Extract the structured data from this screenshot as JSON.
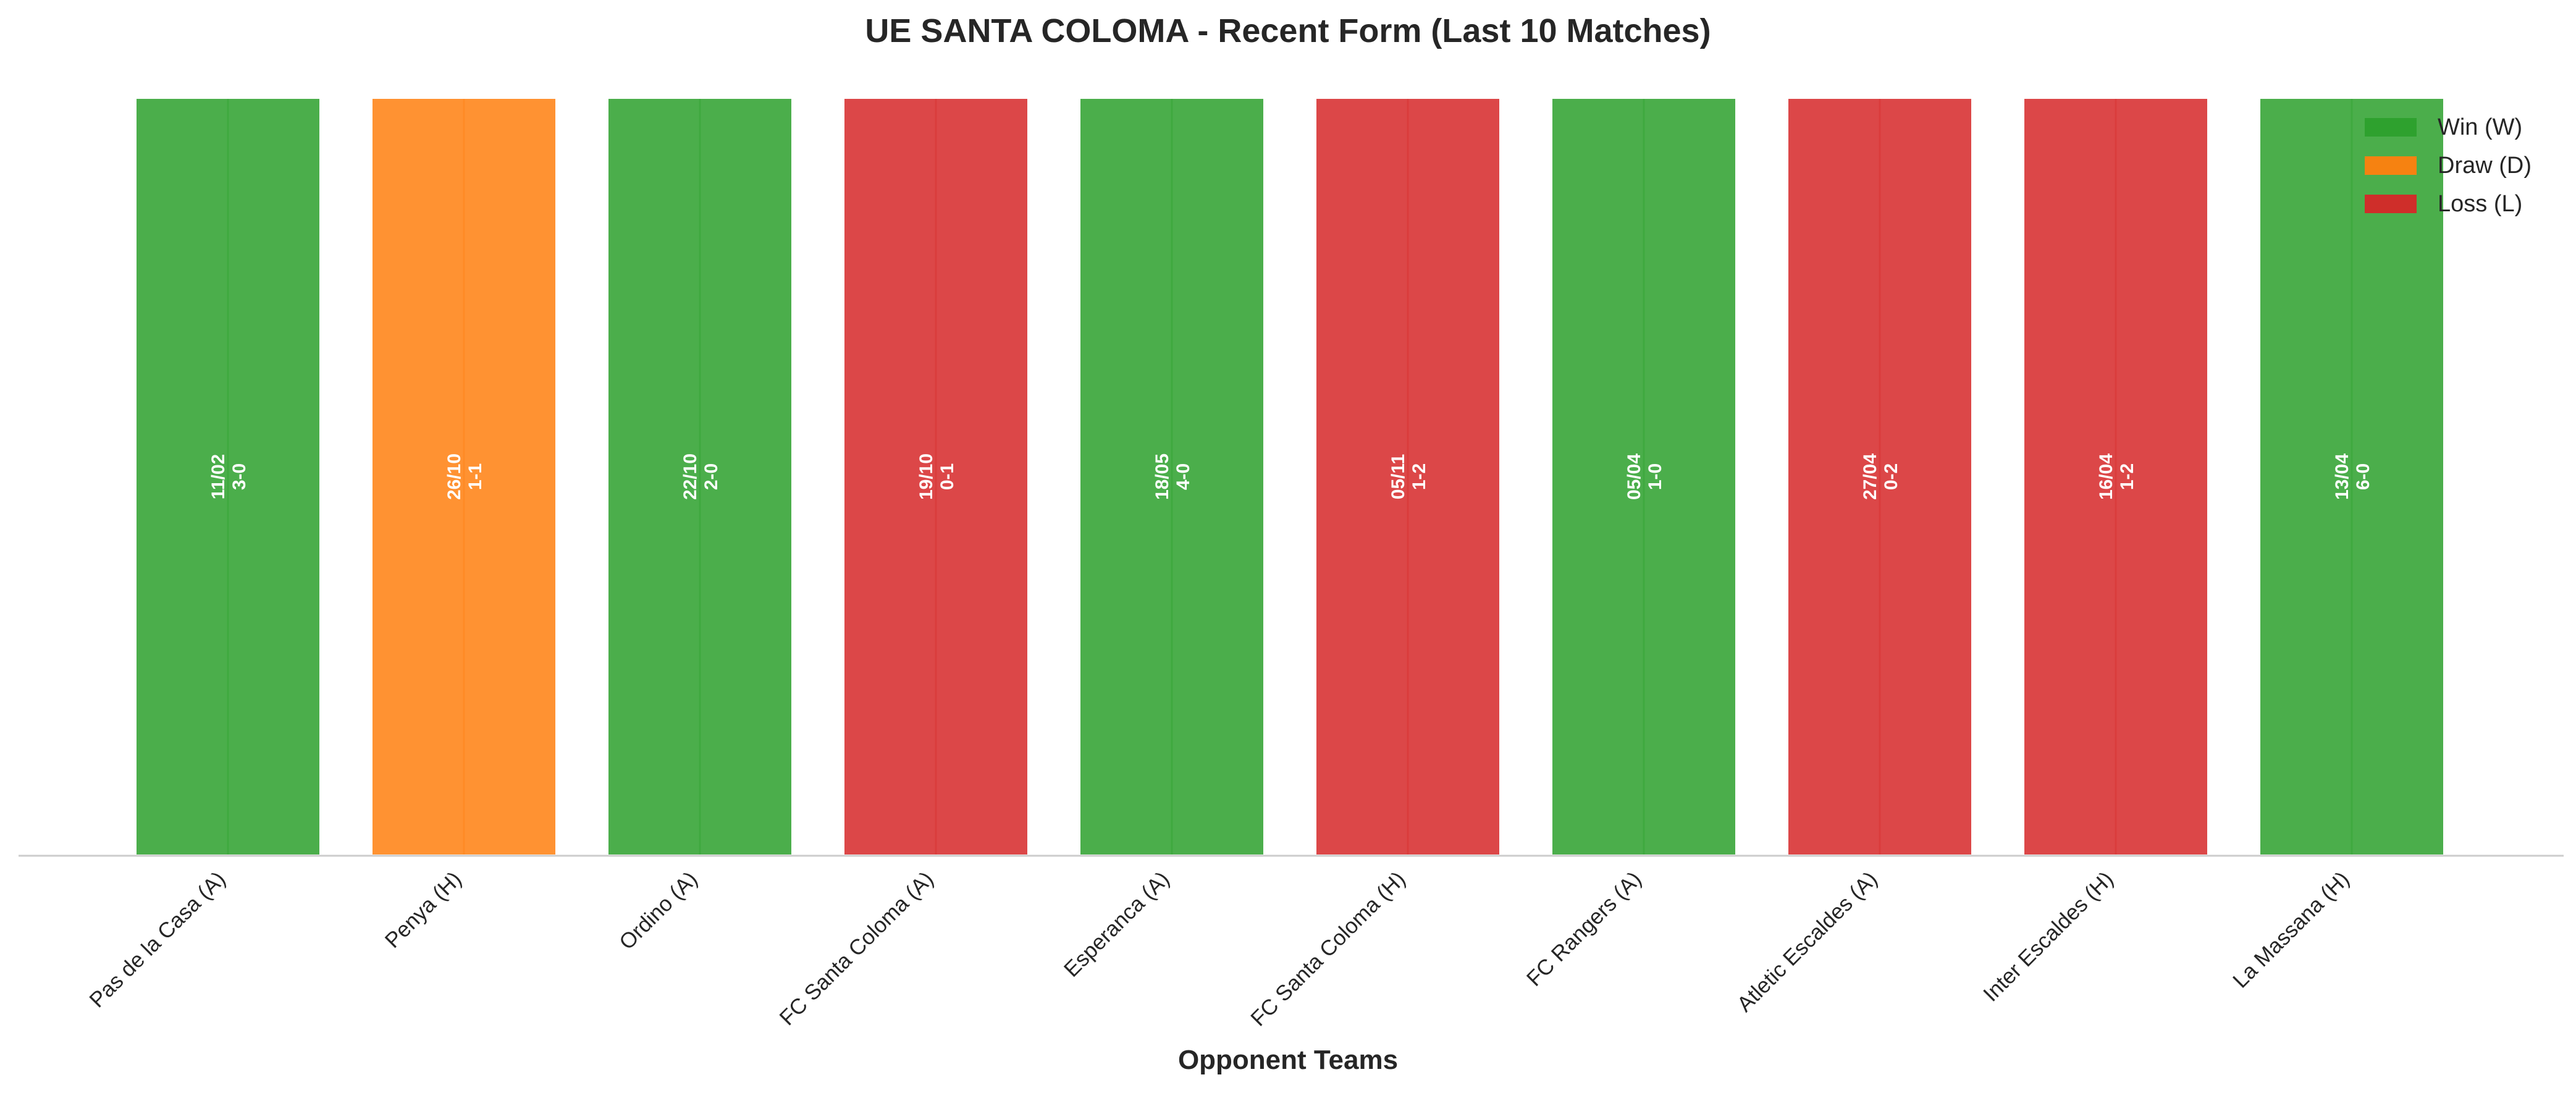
{
  "chart_data": {
    "type": "bar",
    "title": "UE SANTA COLOMA - Recent Form (Last 10 Matches)",
    "xlabel": "Opponent Teams",
    "ylabel": "",
    "ylim": [
      0,
      1
    ],
    "grid": false,
    "legend_position": "top-right",
    "categories": [
      "Pas de la Casa (A)",
      "Penya (H)",
      "Ordino (A)",
      "FC Santa Coloma (A)",
      "Esperanca (A)",
      "FC Santa Coloma (H)",
      "FC Rangers (A)",
      "Atletic Escaldes (A)",
      "Inter Escaldes (H)",
      "La Massana (H)"
    ],
    "values": [
      1,
      1,
      1,
      1,
      1,
      1,
      1,
      1,
      1,
      1
    ],
    "results": [
      "W",
      "D",
      "W",
      "L",
      "W",
      "L",
      "W",
      "L",
      "L",
      "W"
    ],
    "bar_labels": [
      {
        "date": "11/02",
        "score": "3-0"
      },
      {
        "date": "26/10",
        "score": "1-1"
      },
      {
        "date": "22/10",
        "score": "2-0"
      },
      {
        "date": "19/10",
        "score": "0-1"
      },
      {
        "date": "18/05",
        "score": "4-0"
      },
      {
        "date": "05/11",
        "score": "1-2"
      },
      {
        "date": "05/04",
        "score": "1-0"
      },
      {
        "date": "27/04",
        "score": "0-2"
      },
      {
        "date": "16/04",
        "score": "1-2"
      },
      {
        "date": "13/04",
        "score": "6-0"
      }
    ],
    "legend": [
      {
        "key": "W",
        "label": "Win (W)",
        "color": "#2ca02c"
      },
      {
        "key": "D",
        "label": "Draw (D)",
        "color": "#ff7f0e"
      },
      {
        "key": "L",
        "label": "Loss (L)",
        "color": "#d62728"
      }
    ],
    "colors": {
      "W": "#2ca02c",
      "D": "#ff7f0e",
      "L": "#d62728"
    }
  }
}
